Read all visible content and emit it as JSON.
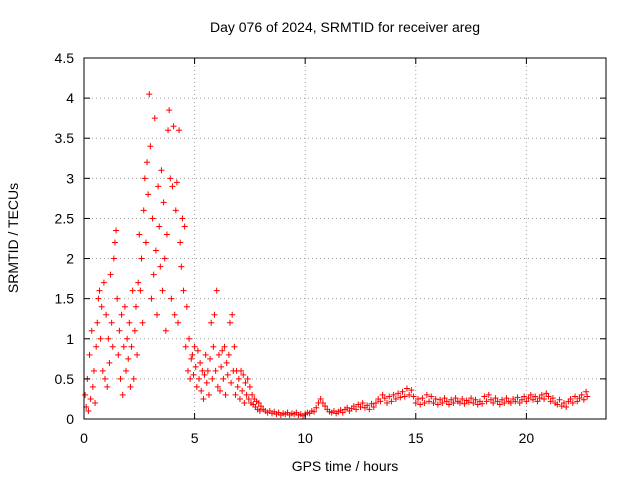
{
  "chart_data": {
    "type": "scatter",
    "title": "Day 076 of 2024, SRMTID for receiver areg",
    "xlabel": "GPS time / hours",
    "ylabel": "SRMTID / TECUs",
    "xlim": [
      0,
      23.6
    ],
    "ylim": [
      0,
      4.5
    ],
    "xticks": [
      0,
      5,
      10,
      15,
      20
    ],
    "yticks": [
      0,
      0.5,
      1,
      1.5,
      2,
      2.5,
      3,
      3.5,
      4,
      4.5
    ],
    "grid": true,
    "marker": "plus",
    "series": [
      {
        "name": "SRMTID",
        "color": "#ff0000",
        "points": [
          [
            0.05,
            0.3
          ],
          [
            0.1,
            0.15
          ],
          [
            0.15,
            0.5
          ],
          [
            0.2,
            0.1
          ],
          [
            0.25,
            0.8
          ],
          [
            0.3,
            0.25
          ],
          [
            0.35,
            1.1
          ],
          [
            0.4,
            0.4
          ],
          [
            0.45,
            0.6
          ],
          [
            0.5,
            0.2
          ],
          [
            0.55,
            0.9
          ],
          [
            0.6,
            1.2
          ],
          [
            0.65,
            1.5
          ],
          [
            0.7,
            1.6
          ],
          [
            0.75,
            1.0
          ],
          [
            0.8,
            1.4
          ],
          [
            0.85,
            0.6
          ],
          [
            0.9,
            1.7
          ],
          [
            0.95,
            0.5
          ],
          [
            1.0,
            1.3
          ],
          [
            1.05,
            0.4
          ],
          [
            1.1,
            1.0
          ],
          [
            1.15,
            0.7
          ],
          [
            1.2,
            1.8
          ],
          [
            1.25,
            1.2
          ],
          [
            1.3,
            0.9
          ],
          [
            1.35,
            2.0
          ],
          [
            1.4,
            2.2
          ],
          [
            1.45,
            2.35
          ],
          [
            1.5,
            1.5
          ],
          [
            1.55,
            0.8
          ],
          [
            1.6,
            1.1
          ],
          [
            1.65,
            0.5
          ],
          [
            1.7,
            1.3
          ],
          [
            1.75,
            0.3
          ],
          [
            1.8,
            0.9
          ],
          [
            1.85,
            1.4
          ],
          [
            1.9,
            0.6
          ],
          [
            1.95,
            1.0
          ],
          [
            2.0,
            0.75
          ],
          [
            2.05,
            1.2
          ],
          [
            2.1,
            0.4
          ],
          [
            2.15,
            0.9
          ],
          [
            2.2,
            1.6
          ],
          [
            2.25,
            0.5
          ],
          [
            2.3,
            1.1
          ],
          [
            2.35,
            1.4
          ],
          [
            2.4,
            0.8
          ],
          [
            2.45,
            1.7
          ],
          [
            2.5,
            2.3
          ],
          [
            2.55,
            1.6
          ],
          [
            2.6,
            2.0
          ],
          [
            2.65,
            1.2
          ],
          [
            2.7,
            2.6
          ],
          [
            2.75,
            3.0
          ],
          [
            2.8,
            2.2
          ],
          [
            2.85,
            3.2
          ],
          [
            2.9,
            2.8
          ],
          [
            2.95,
            4.05
          ],
          [
            3.0,
            3.4
          ],
          [
            3.05,
            1.5
          ],
          [
            3.1,
            2.5
          ],
          [
            3.15,
            1.8
          ],
          [
            3.2,
            3.75
          ],
          [
            3.25,
            2.1
          ],
          [
            3.3,
            1.3
          ],
          [
            3.35,
            2.9
          ],
          [
            3.4,
            2.4
          ],
          [
            3.45,
            1.9
          ],
          [
            3.5,
            3.1
          ],
          [
            3.55,
            1.6
          ],
          [
            3.6,
            2.7
          ],
          [
            3.65,
            2.0
          ],
          [
            3.7,
            1.1
          ],
          [
            3.75,
            2.3
          ],
          [
            3.8,
            3.6
          ],
          [
            3.85,
            3.85
          ],
          [
            3.9,
            3.0
          ],
          [
            3.95,
            1.5
          ],
          [
            4.0,
            2.9
          ],
          [
            4.05,
            3.65
          ],
          [
            4.1,
            1.3
          ],
          [
            4.15,
            2.6
          ],
          [
            4.2,
            2.95
          ],
          [
            4.25,
            1.2
          ],
          [
            4.3,
            3.6
          ],
          [
            4.35,
            2.2
          ],
          [
            4.4,
            1.9
          ],
          [
            4.45,
            2.5
          ],
          [
            4.5,
            1.6
          ],
          [
            4.55,
            2.4
          ],
          [
            4.6,
            0.9
          ],
          [
            4.65,
            1.4
          ],
          [
            4.7,
            0.6
          ],
          [
            4.75,
            1.0
          ],
          [
            4.8,
            0.5
          ],
          [
            4.85,
            0.75
          ],
          [
            4.9,
            0.8
          ],
          [
            4.95,
            0.55
          ],
          [
            5.0,
            0.9
          ],
          [
            5.05,
            0.65
          ],
          [
            5.1,
            0.4
          ],
          [
            5.15,
            0.85
          ],
          [
            5.2,
            0.5
          ],
          [
            5.25,
            0.7
          ],
          [
            5.3,
            0.35
          ],
          [
            5.35,
            0.6
          ],
          [
            5.4,
            0.25
          ],
          [
            5.45,
            0.55
          ],
          [
            5.5,
            0.8
          ],
          [
            5.55,
            0.45
          ],
          [
            5.6,
            0.6
          ],
          [
            5.65,
            0.3
          ],
          [
            5.7,
            0.75
          ],
          [
            5.75,
            1.2
          ],
          [
            5.8,
            0.5
          ],
          [
            5.85,
            0.9
          ],
          [
            5.9,
            1.3
          ],
          [
            5.95,
            0.6
          ],
          [
            6.0,
            1.6
          ],
          [
            6.05,
            0.4
          ],
          [
            6.1,
            0.8
          ],
          [
            6.15,
            0.35
          ],
          [
            6.2,
            0.65
          ],
          [
            6.25,
            0.85
          ],
          [
            6.3,
            0.5
          ],
          [
            6.35,
            0.9
          ],
          [
            6.4,
            0.3
          ],
          [
            6.45,
            0.7
          ],
          [
            6.5,
            0.55
          ],
          [
            6.55,
            0.8
          ],
          [
            6.6,
            1.2
          ],
          [
            6.65,
            0.45
          ],
          [
            6.7,
            1.3
          ],
          [
            6.75,
            0.6
          ],
          [
            6.8,
            0.9
          ],
          [
            6.85,
            0.3
          ],
          [
            6.9,
            0.6
          ],
          [
            6.95,
            0.4
          ],
          [
            7.0,
            0.5
          ],
          [
            7.05,
            0.25
          ],
          [
            7.1,
            0.6
          ],
          [
            7.15,
            0.35
          ],
          [
            7.2,
            0.55
          ],
          [
            7.25,
            0.2
          ],
          [
            7.3,
            0.45
          ],
          [
            7.35,
            0.3
          ],
          [
            7.4,
            0.5
          ],
          [
            7.45,
            0.25
          ],
          [
            7.5,
            0.4
          ],
          [
            7.55,
            0.2
          ],
          [
            7.6,
            0.3
          ],
          [
            7.65,
            0.18
          ],
          [
            7.7,
            0.25
          ],
          [
            7.75,
            0.15
          ],
          [
            7.8,
            0.22
          ],
          [
            7.85,
            0.12
          ],
          [
            7.9,
            0.2
          ],
          [
            7.95,
            0.1
          ],
          [
            8.0,
            0.16
          ],
          [
            8.1,
            0.12
          ],
          [
            8.2,
            0.1
          ],
          [
            8.3,
            0.08
          ],
          [
            8.4,
            0.1
          ],
          [
            8.5,
            0.07
          ],
          [
            8.6,
            0.09
          ],
          [
            8.7,
            0.06
          ],
          [
            8.8,
            0.08
          ],
          [
            8.9,
            0.05
          ],
          [
            9.0,
            0.07
          ],
          [
            9.1,
            0.06
          ],
          [
            9.2,
            0.08
          ],
          [
            9.3,
            0.05
          ],
          [
            9.4,
            0.07
          ],
          [
            9.5,
            0.06
          ],
          [
            9.6,
            0.08
          ],
          [
            9.7,
            0.05
          ],
          [
            9.8,
            0.06
          ],
          [
            9.9,
            0.04
          ],
          [
            10.0,
            0.06
          ],
          [
            10.1,
            0.08
          ],
          [
            10.2,
            0.07
          ],
          [
            10.3,
            0.1
          ],
          [
            10.4,
            0.09
          ],
          [
            10.5,
            0.14
          ],
          [
            10.6,
            0.2
          ],
          [
            10.7,
            0.25
          ],
          [
            10.8,
            0.2
          ],
          [
            10.9,
            0.16
          ],
          [
            11.0,
            0.12
          ],
          [
            11.1,
            0.09
          ],
          [
            11.2,
            0.08
          ],
          [
            11.3,
            0.1
          ],
          [
            11.4,
            0.07
          ],
          [
            11.5,
            0.09
          ],
          [
            11.6,
            0.11
          ],
          [
            11.7,
            0.08
          ],
          [
            11.8,
            0.12
          ],
          [
            11.9,
            0.14
          ],
          [
            12.0,
            0.1
          ],
          [
            12.1,
            0.13
          ],
          [
            12.2,
            0.16
          ],
          [
            12.3,
            0.12
          ],
          [
            12.4,
            0.18
          ],
          [
            12.5,
            0.15
          ],
          [
            12.6,
            0.2
          ],
          [
            12.7,
            0.14
          ],
          [
            12.8,
            0.17
          ],
          [
            12.9,
            0.12
          ],
          [
            13.0,
            0.19
          ],
          [
            13.1,
            0.15
          ],
          [
            13.2,
            0.2
          ],
          [
            13.3,
            0.25
          ],
          [
            13.4,
            0.22
          ],
          [
            13.5,
            0.3
          ],
          [
            13.6,
            0.26
          ],
          [
            13.7,
            0.2
          ],
          [
            13.8,
            0.28
          ],
          [
            13.9,
            0.22
          ],
          [
            14.0,
            0.3
          ],
          [
            14.1,
            0.25
          ],
          [
            14.2,
            0.32
          ],
          [
            14.3,
            0.27
          ],
          [
            14.4,
            0.34
          ],
          [
            14.5,
            0.28
          ],
          [
            14.6,
            0.38
          ],
          [
            14.7,
            0.3
          ],
          [
            14.8,
            0.36
          ],
          [
            14.9,
            0.28
          ],
          [
            15.0,
            0.2
          ],
          [
            15.1,
            0.25
          ],
          [
            15.2,
            0.18
          ],
          [
            15.3,
            0.26
          ],
          [
            15.4,
            0.2
          ],
          [
            15.5,
            0.3
          ],
          [
            15.6,
            0.22
          ],
          [
            15.7,
            0.28
          ],
          [
            15.8,
            0.2
          ],
          [
            15.9,
            0.25
          ],
          [
            16.0,
            0.18
          ],
          [
            16.1,
            0.24
          ],
          [
            16.2,
            0.2
          ],
          [
            16.3,
            0.26
          ],
          [
            16.4,
            0.22
          ],
          [
            16.5,
            0.18
          ],
          [
            16.6,
            0.24
          ],
          [
            16.7,
            0.2
          ],
          [
            16.8,
            0.26
          ],
          [
            16.9,
            0.22
          ],
          [
            17.0,
            0.2
          ],
          [
            17.1,
            0.25
          ],
          [
            17.2,
            0.19
          ],
          [
            17.3,
            0.23
          ],
          [
            17.4,
            0.21
          ],
          [
            17.5,
            0.26
          ],
          [
            17.6,
            0.2
          ],
          [
            17.7,
            0.24
          ],
          [
            17.8,
            0.18
          ],
          [
            17.9,
            0.22
          ],
          [
            18.0,
            0.19
          ],
          [
            18.1,
            0.28
          ],
          [
            18.2,
            0.22
          ],
          [
            18.3,
            0.3
          ],
          [
            18.4,
            0.24
          ],
          [
            18.5,
            0.2
          ],
          [
            18.6,
            0.26
          ],
          [
            18.7,
            0.22
          ],
          [
            18.8,
            0.18
          ],
          [
            18.9,
            0.24
          ],
          [
            19.0,
            0.2
          ],
          [
            19.1,
            0.26
          ],
          [
            19.2,
            0.22
          ],
          [
            19.3,
            0.2
          ],
          [
            19.4,
            0.25
          ],
          [
            19.5,
            0.22
          ],
          [
            19.6,
            0.27
          ],
          [
            19.7,
            0.2
          ],
          [
            19.8,
            0.24
          ],
          [
            19.9,
            0.28
          ],
          [
            20.0,
            0.22
          ],
          [
            20.1,
            0.26
          ],
          [
            20.2,
            0.3
          ],
          [
            20.3,
            0.24
          ],
          [
            20.4,
            0.28
          ],
          [
            20.5,
            0.22
          ],
          [
            20.6,
            0.26
          ],
          [
            20.7,
            0.3
          ],
          [
            20.8,
            0.25
          ],
          [
            20.9,
            0.32
          ],
          [
            21.0,
            0.28
          ],
          [
            21.1,
            0.22
          ],
          [
            21.2,
            0.26
          ],
          [
            21.3,
            0.2
          ],
          [
            21.4,
            0.18
          ],
          [
            21.5,
            0.24
          ],
          [
            21.6,
            0.16
          ],
          [
            21.7,
            0.2
          ],
          [
            21.8,
            0.15
          ],
          [
            21.9,
            0.22
          ],
          [
            22.0,
            0.25
          ],
          [
            22.1,
            0.2
          ],
          [
            22.2,
            0.28
          ],
          [
            22.3,
            0.22
          ],
          [
            22.4,
            0.26
          ],
          [
            22.5,
            0.3
          ],
          [
            22.6,
            0.24
          ],
          [
            22.7,
            0.34
          ],
          [
            22.75,
            0.28
          ]
        ]
      }
    ]
  }
}
